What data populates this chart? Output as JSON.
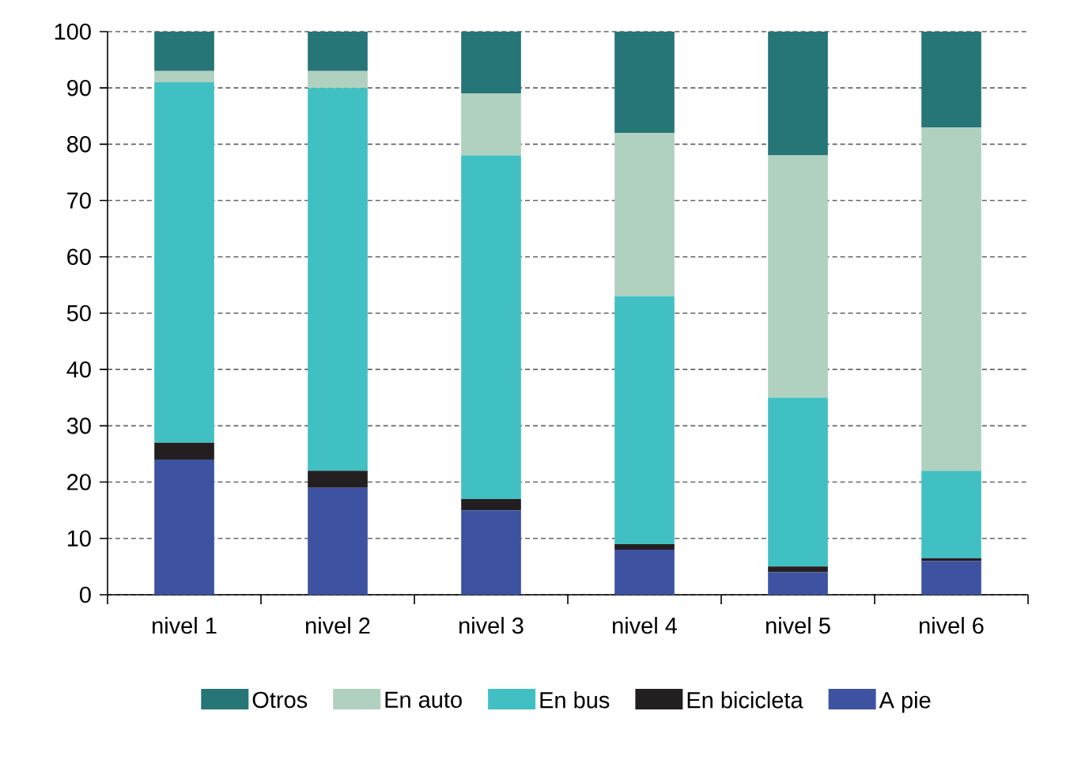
{
  "chart_data": {
    "type": "bar",
    "stacked": true,
    "categories": [
      "nivel 1",
      "nivel 2",
      "nivel 3",
      "nivel 4",
      "nivel 5",
      "nivel 6"
    ],
    "series": [
      {
        "name": "A pie",
        "color": "#3d52a1",
        "values": [
          24,
          19,
          15,
          8,
          4,
          6
        ]
      },
      {
        "name": "En bicicleta",
        "color": "#231f20",
        "values": [
          3,
          3,
          2,
          1,
          1,
          0.5
        ]
      },
      {
        "name": "En bus",
        "color": "#41c0c3",
        "values": [
          64,
          68,
          61,
          44,
          30,
          15.5
        ]
      },
      {
        "name": "En auto",
        "color": "#b0d1c0",
        "values": [
          2,
          3,
          11,
          29,
          43,
          61
        ]
      },
      {
        "name": "Otros",
        "color": "#267577",
        "values": [
          7,
          7,
          11,
          18,
          22,
          17
        ]
      }
    ],
    "ylim": [
      0,
      100
    ],
    "yticks": [
      0,
      10,
      20,
      30,
      40,
      50,
      60,
      70,
      80,
      90,
      100
    ],
    "grid": "y",
    "legend": "bottom"
  }
}
